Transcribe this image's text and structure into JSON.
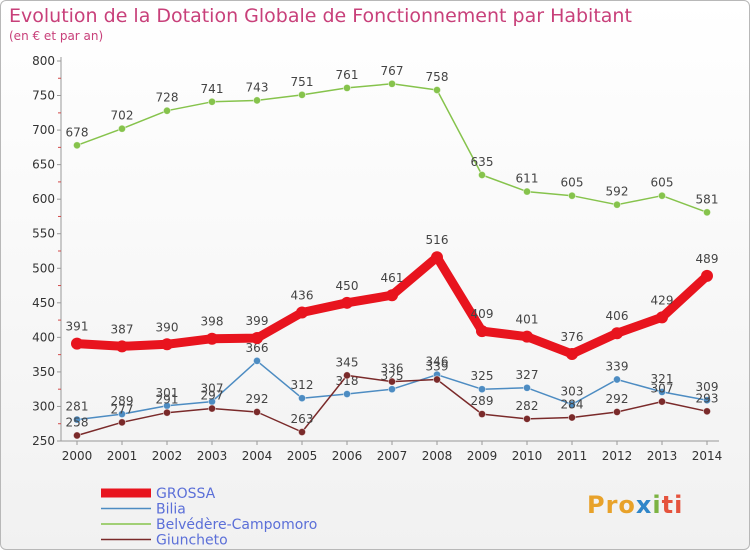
{
  "chart_data": {
    "type": "line",
    "title": "Evolution de la Dotation Globale de Fonctionnement par Habitant",
    "subtitle": "(en € et par an)",
    "x": [
      "2000",
      "2001",
      "2002",
      "2003",
      "2004",
      "2005",
      "2006",
      "2007",
      "2008",
      "2009",
      "2010",
      "2011",
      "2012",
      "2013",
      "2014"
    ],
    "yticks": [
      250,
      300,
      350,
      400,
      450,
      500,
      550,
      600,
      650,
      700,
      750,
      800
    ],
    "ylim": [
      250,
      800
    ],
    "grid": false,
    "legend": "bottom-left",
    "series": [
      {
        "name": "GROSSA",
        "color": "#e8141e",
        "emphasis": true,
        "values": [
          391,
          387,
          390,
          398,
          399,
          436,
          450,
          461,
          516,
          409,
          401,
          376,
          406,
          429,
          489
        ],
        "labels": [
          "391",
          "387",
          "390",
          "398",
          "399",
          "436",
          "450",
          "461",
          "516",
          "409",
          "401",
          "376",
          "406",
          "429",
          "489"
        ]
      },
      {
        "name": "Bilia",
        "color": "#4d8cc2",
        "emphasis": false,
        "values": [
          281,
          289,
          301,
          307,
          366,
          312,
          318,
          325,
          346,
          325,
          327,
          303,
          339,
          321,
          309
        ],
        "labels": [
          "281",
          "289",
          "301",
          "307",
          "366",
          "312",
          "318",
          "325",
          "346",
          "325",
          "327",
          "303",
          "339",
          "321",
          "309"
        ]
      },
      {
        "name": "Belvédère-Campomoro",
        "color": "#86c34c",
        "emphasis": false,
        "values": [
          678,
          702,
          728,
          741,
          743,
          751,
          761,
          767,
          758,
          635,
          611,
          605,
          592,
          605,
          581
        ],
        "labels": [
          "678",
          "702",
          "728",
          "741",
          "743",
          "751",
          "761",
          "767",
          "758",
          "635",
          "611",
          "605",
          "592",
          "605",
          "581"
        ]
      },
      {
        "name": "Giuncheto",
        "color": "#7a2a2a",
        "emphasis": false,
        "values": [
          258,
          277,
          291,
          297,
          292,
          263,
          345,
          336,
          339,
          289,
          282,
          284,
          292,
          307,
          293
        ],
        "labels": [
          "258",
          "277",
          "291",
          "297",
          "292",
          "263",
          "345",
          "336",
          "339",
          "289",
          "282",
          "284",
          "292",
          "307",
          "293"
        ]
      }
    ]
  },
  "logo": {
    "p1": "Pro",
    "p2": "x",
    "p3": "i",
    "p4": "ti"
  }
}
